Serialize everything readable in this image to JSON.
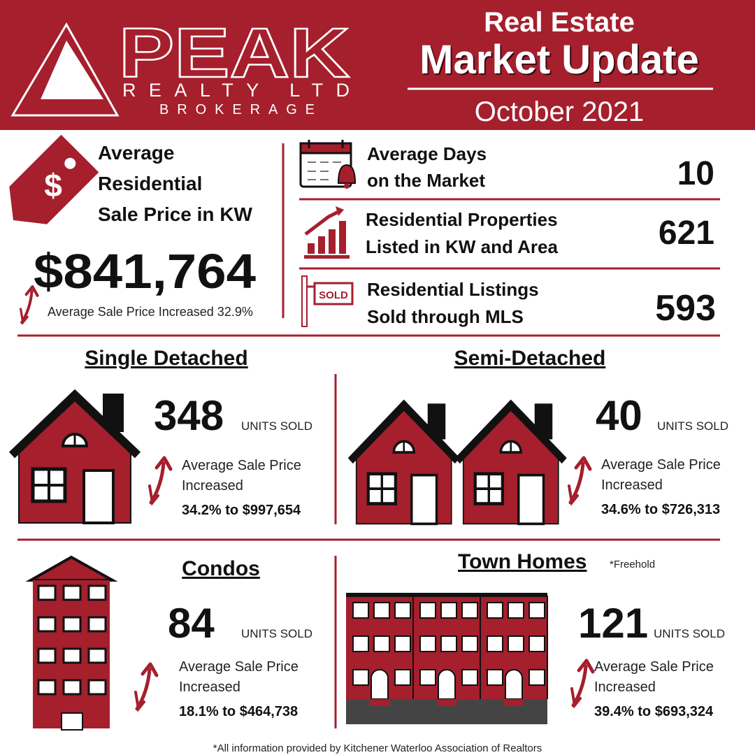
{
  "header": {
    "brand": "PEAK",
    "brand_sub": "REALTY LTD",
    "brand_sub2": "BROKERAGE",
    "title_line1": "Real Estate",
    "title_line2": "Market Update",
    "date": "October 2021"
  },
  "average_price": {
    "icon_symbol": "$",
    "label_lines": [
      "Average",
      "Residential",
      "Sale Price in KW"
    ],
    "value": "$841,764",
    "note": "Average Sale Price Increased 32.9%"
  },
  "stats": [
    {
      "label_lines": [
        "Average Days",
        "on the Market"
      ],
      "value": 10
    },
    {
      "label_lines": [
        "Residential Properties",
        "Listed in KW and Area"
      ],
      "value": 621
    },
    {
      "label_lines": [
        "Residential Listings",
        "Sold through MLS"
      ],
      "value": 593,
      "sign_text": "SOLD"
    }
  ],
  "segments": [
    {
      "title": "Single Detached",
      "units": 348,
      "units_label": "UNITS SOLD",
      "change_lines": [
        "Average Sale Price",
        "Increased"
      ],
      "change_detail": "34.2% to $997,654"
    },
    {
      "title": "Semi-Detached",
      "units": 40,
      "units_label": "UNITS SOLD",
      "change_lines": [
        "Average Sale Price",
        "Increased"
      ],
      "change_detail": "34.6% to $726,313"
    },
    {
      "title": "Condos",
      "units": 84,
      "units_label": "UNITS SOLD",
      "change_lines": [
        "Average Sale Price",
        "Increased"
      ],
      "change_detail": "18.1% to $464,738"
    },
    {
      "title": "Town Homes",
      "note": "*Freehold",
      "units": 121,
      "units_label": "UNITS SOLD",
      "change_lines": [
        "Average Sale Price",
        "Increased"
      ],
      "change_detail": "39.4% to $693,324"
    }
  ],
  "footer": "*All information provided by Kitchener Waterloo Association of Realtors"
}
